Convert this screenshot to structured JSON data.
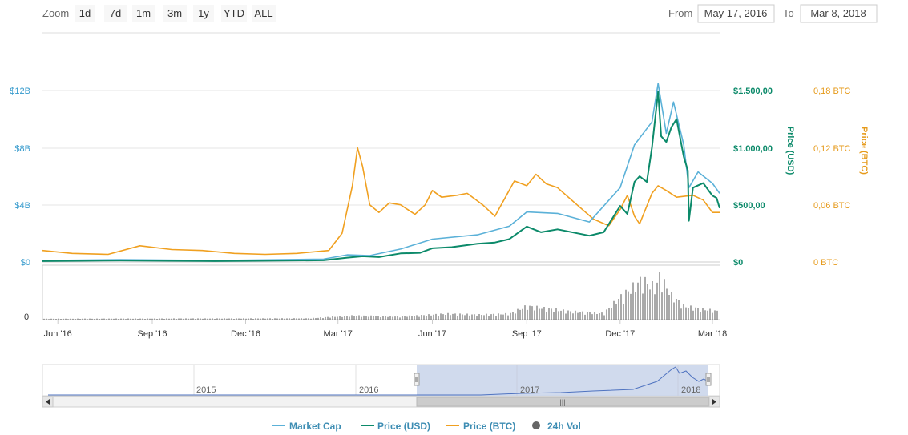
{
  "zoom": {
    "label": "Zoom",
    "buttons": [
      "1d",
      "7d",
      "1m",
      "3m",
      "1y",
      "YTD",
      "ALL"
    ]
  },
  "range": {
    "from_label": "From",
    "from_value": "May 17, 2016",
    "to_label": "To",
    "to_value": "Mar 8, 2018"
  },
  "colors": {
    "market_cap": "#5bb1d8",
    "price_usd": "#0c8a6a",
    "price_btc": "#f0a020",
    "volume": "#555555",
    "navigator_fill": "#c8d3ea",
    "navigator_line": "#4f73c0"
  },
  "chart_data": {
    "type": "line",
    "x_ticks": [
      "Jun '16",
      "Sep '16",
      "Dec '16",
      "Mar '17",
      "Jun '17",
      "Sep '17",
      "Dec '17",
      "Mar '18"
    ],
    "axes": {
      "market_cap": {
        "ticks": [
          "$0",
          "$4B",
          "$8B",
          "$12B"
        ],
        "ylim": [
          0,
          12
        ]
      },
      "price_usd": {
        "title": "Price (USD)",
        "ticks": [
          "$0",
          "$500,00",
          "$1.000,00",
          "$1.500,00"
        ],
        "ylim": [
          0,
          1500
        ]
      },
      "price_btc": {
        "title": "Price (BTC)",
        "ticks": [
          "0 BTC",
          "0,06 BTC",
          "0,12 BTC",
          "0,18 BTC"
        ],
        "ylim": [
          0,
          0.18
        ]
      },
      "volume": {
        "ticks": [
          "0"
        ]
      }
    },
    "series": [
      {
        "name": "Market Cap",
        "unit": "B USD",
        "points": [
          [
            "2016-05-17",
            0.1
          ],
          [
            "2016-08-01",
            0.17
          ],
          [
            "2016-11-01",
            0.1
          ],
          [
            "2017-02-15",
            0.2
          ],
          [
            "2017-03-10",
            0.5
          ],
          [
            "2017-04-01",
            0.45
          ],
          [
            "2017-05-01",
            0.9
          ],
          [
            "2017-06-01",
            1.6
          ],
          [
            "2017-07-15",
            1.9
          ],
          [
            "2017-08-15",
            2.5
          ],
          [
            "2017-09-01",
            3.5
          ],
          [
            "2017-10-01",
            3.4
          ],
          [
            "2017-11-01",
            2.8
          ],
          [
            "2017-12-01",
            5.2
          ],
          [
            "2017-12-15",
            8.2
          ],
          [
            "2018-01-01",
            9.8
          ],
          [
            "2018-01-07",
            12.5
          ],
          [
            "2018-01-15",
            9.0
          ],
          [
            "2018-01-22",
            11.2
          ],
          [
            "2018-02-01",
            8.2
          ],
          [
            "2018-02-06",
            5.2
          ],
          [
            "2018-02-15",
            6.3
          ],
          [
            "2018-03-01",
            5.5
          ],
          [
            "2018-03-08",
            4.8
          ]
        ]
      },
      {
        "name": "Price (USD)",
        "points": [
          [
            "2016-05-17",
            8
          ],
          [
            "2016-08-01",
            13
          ],
          [
            "2016-11-01",
            8
          ],
          [
            "2017-02-15",
            15
          ],
          [
            "2017-03-10",
            38
          ],
          [
            "2017-03-25",
            50
          ],
          [
            "2017-04-10",
            43
          ],
          [
            "2017-05-01",
            75
          ],
          [
            "2017-05-20",
            80
          ],
          [
            "2017-06-01",
            120
          ],
          [
            "2017-06-20",
            130
          ],
          [
            "2017-07-15",
            160
          ],
          [
            "2017-08-01",
            170
          ],
          [
            "2017-08-15",
            200
          ],
          [
            "2017-09-01",
            310
          ],
          [
            "2017-09-15",
            260
          ],
          [
            "2017-10-01",
            285
          ],
          [
            "2017-11-01",
            230
          ],
          [
            "2017-11-15",
            260
          ],
          [
            "2017-12-01",
            490
          ],
          [
            "2017-12-08",
            420
          ],
          [
            "2017-12-15",
            700
          ],
          [
            "2017-12-20",
            750
          ],
          [
            "2017-12-27",
            700
          ],
          [
            "2018-01-01",
            1000
          ],
          [
            "2018-01-07",
            1490
          ],
          [
            "2018-01-10",
            1100
          ],
          [
            "2018-01-15",
            1050
          ],
          [
            "2018-01-20",
            1180
          ],
          [
            "2018-01-25",
            1250
          ],
          [
            "2018-02-01",
            920
          ],
          [
            "2018-02-05",
            800
          ],
          [
            "2018-02-06",
            360
          ],
          [
            "2018-02-10",
            650
          ],
          [
            "2018-02-20",
            690
          ],
          [
            "2018-03-01",
            580
          ],
          [
            "2018-03-05",
            560
          ],
          [
            "2018-03-08",
            470
          ]
        ]
      },
      {
        "name": "Price (BTC)",
        "points": [
          [
            "2016-05-17",
            0.012
          ],
          [
            "2016-06-15",
            0.009
          ],
          [
            "2016-07-20",
            0.008
          ],
          [
            "2016-08-20",
            0.017
          ],
          [
            "2016-09-20",
            0.013
          ],
          [
            "2016-10-20",
            0.012
          ],
          [
            "2016-11-20",
            0.009
          ],
          [
            "2016-12-20",
            0.008
          ],
          [
            "2017-01-20",
            0.009
          ],
          [
            "2017-02-20",
            0.012
          ],
          [
            "2017-03-05",
            0.03
          ],
          [
            "2017-03-15",
            0.08
          ],
          [
            "2017-03-20",
            0.12
          ],
          [
            "2017-03-25",
            0.1
          ],
          [
            "2017-04-01",
            0.06
          ],
          [
            "2017-04-10",
            0.052
          ],
          [
            "2017-04-20",
            0.062
          ],
          [
            "2017-05-01",
            0.06
          ],
          [
            "2017-05-15",
            0.05
          ],
          [
            "2017-05-25",
            0.06
          ],
          [
            "2017-06-01",
            0.075
          ],
          [
            "2017-06-10",
            0.068
          ],
          [
            "2017-06-25",
            0.07
          ],
          [
            "2017-07-05",
            0.072
          ],
          [
            "2017-07-20",
            0.06
          ],
          [
            "2017-08-01",
            0.048
          ],
          [
            "2017-08-20",
            0.085
          ],
          [
            "2017-09-01",
            0.08
          ],
          [
            "2017-09-10",
            0.092
          ],
          [
            "2017-09-20",
            0.082
          ],
          [
            "2017-10-01",
            0.078
          ],
          [
            "2017-10-20",
            0.06
          ],
          [
            "2017-11-05",
            0.045
          ],
          [
            "2017-11-20",
            0.038
          ],
          [
            "2017-12-01",
            0.055
          ],
          [
            "2017-12-08",
            0.07
          ],
          [
            "2017-12-15",
            0.048
          ],
          [
            "2017-12-20",
            0.04
          ],
          [
            "2018-01-01",
            0.072
          ],
          [
            "2018-01-07",
            0.08
          ],
          [
            "2018-01-15",
            0.075
          ],
          [
            "2018-01-25",
            0.068
          ],
          [
            "2018-02-10",
            0.07
          ],
          [
            "2018-02-20",
            0.065
          ],
          [
            "2018-03-01",
            0.052
          ],
          [
            "2018-03-08",
            0.052
          ]
        ]
      },
      {
        "name": "24h Vol",
        "unit": "relative",
        "points": [
          [
            "2016-05-17",
            0.02
          ],
          [
            "2017-02-01",
            0.03
          ],
          [
            "2017-03-15",
            0.09
          ],
          [
            "2017-05-01",
            0.07
          ],
          [
            "2017-06-15",
            0.13
          ],
          [
            "2017-07-15",
            0.11
          ],
          [
            "2017-08-15",
            0.13
          ],
          [
            "2017-09-01",
            0.3
          ],
          [
            "2017-10-15",
            0.18
          ],
          [
            "2017-11-15",
            0.14
          ],
          [
            "2017-12-01",
            0.5
          ],
          [
            "2017-12-15",
            0.75
          ],
          [
            "2017-12-22",
            0.9
          ],
          [
            "2018-01-05",
            0.7
          ],
          [
            "2018-01-08",
            1.0
          ],
          [
            "2018-01-20",
            0.55
          ],
          [
            "2018-02-01",
            0.3
          ],
          [
            "2018-03-08",
            0.18
          ]
        ]
      }
    ],
    "x_range": [
      "2016-05-17",
      "2018-03-08"
    ],
    "grid": true
  },
  "navigator": {
    "years": [
      "2015",
      "2016",
      "2017",
      "2018"
    ],
    "scroll_grip": "|||"
  },
  "legend": [
    {
      "name": "Market Cap"
    },
    {
      "name": "Price (USD)"
    },
    {
      "name": "Price (BTC)"
    },
    {
      "name": "24h Vol"
    }
  ]
}
